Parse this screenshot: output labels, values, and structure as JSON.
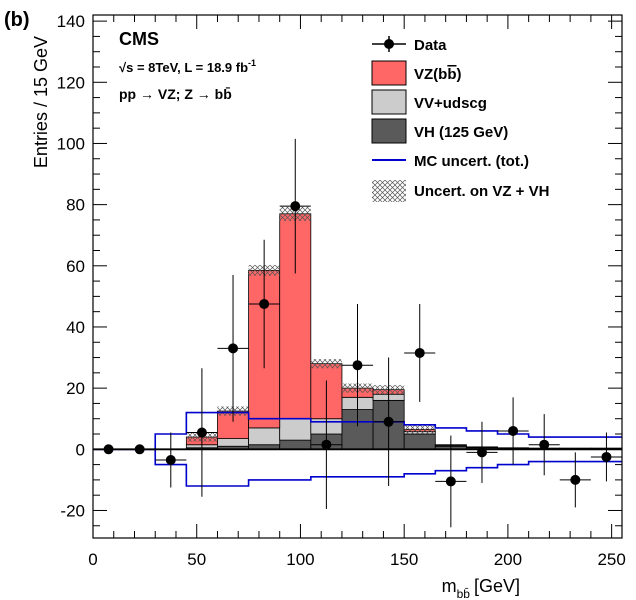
{
  "chart_data": {
    "type": "bar",
    "panel_label": "(b)",
    "experiment": "CMS",
    "energy_lumi": "√s = 8TeV, L = 18.9 fb",
    "energy_lumi_sup": "-1",
    "process": "pp → VZ; Z → bb̄",
    "xlabel": "m",
    "xlabel_sub": "bb̄",
    "xlabel_unit": "[GeV]",
    "ylabel": "Entries / 15 GeV",
    "xlim": [
      0,
      255
    ],
    "ylim": [
      -29,
      142
    ],
    "x_ticks": [
      0,
      50,
      100,
      150,
      200,
      250
    ],
    "y_ticks": [
      -20,
      0,
      20,
      40,
      60,
      80,
      100,
      120,
      140
    ],
    "bin_edges": [
      0,
      15,
      30,
      45,
      60,
      75,
      90,
      105,
      120,
      135,
      150,
      165,
      180,
      195,
      210,
      225,
      240,
      255
    ],
    "stack": [
      {
        "name": "VH (125 GeV)",
        "color": "#5a5a5a",
        "values": [
          0,
          0,
          0,
          0.5,
          1.0,
          1.5,
          3.0,
          5.0,
          13.0,
          16.0,
          5.0,
          1.0,
          0.5,
          0.3,
          0.2,
          0.2,
          0.2
        ]
      },
      {
        "name": "VV+udscg",
        "color": "#cccccc",
        "values": [
          0,
          0,
          0,
          1.0,
          2.5,
          5.5,
          7.0,
          5.0,
          4.0,
          2.0,
          0.8,
          0.3,
          0.2,
          0.1,
          0.1,
          0.1,
          0.1
        ]
      },
      {
        "name": "VZ(bb̄)",
        "color": "#ff6666",
        "label_main": "VZ(b",
        "label_bar": "b",
        "label_close": ")",
        "values": [
          0,
          0,
          0,
          2.5,
          9.0,
          51.5,
          67.0,
          18.0,
          3.0,
          1.5,
          0.7,
          0.2,
          0.1,
          0.1,
          0.1,
          0.1,
          0.1
        ]
      }
    ],
    "mc_uncert": {
      "name": "MC uncert. (tot.)",
      "color": "#0000cc",
      "values": [
        0,
        0,
        5,
        12,
        12,
        10,
        10,
        9,
        9,
        9,
        8,
        7,
        6,
        5,
        4,
        4,
        4
      ]
    },
    "stack_uncert_name": "Uncert. on VZ + VH",
    "data_series": {
      "name": "Data",
      "x": [
        7.5,
        22.5,
        37.5,
        52.5,
        67.5,
        82.5,
        97.5,
        112.5,
        127.5,
        142.5,
        157.5,
        172.5,
        187.5,
        202.5,
        217.5,
        232.5,
        247.5
      ],
      "y": [
        0,
        0,
        -3.5,
        5.5,
        33,
        47.5,
        79.5,
        1.5,
        27.5,
        9,
        31.5,
        -10.5,
        -1,
        6,
        1.5,
        -10,
        -2.5
      ],
      "err": [
        0,
        0,
        9,
        21,
        24,
        21,
        22,
        21,
        20,
        21,
        16,
        15,
        10,
        11,
        10,
        9,
        8
      ]
    },
    "legend_position": "top-right",
    "grid": false
  }
}
